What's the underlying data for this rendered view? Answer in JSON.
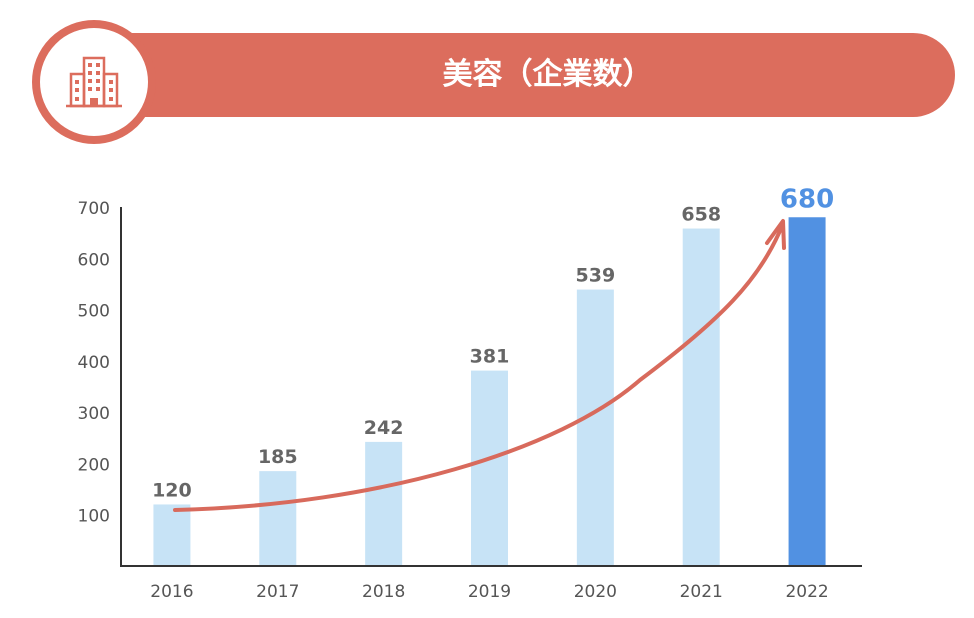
{
  "header": {
    "title": "美容（企業数）",
    "icon": "office-building-icon",
    "color": "#dc6d5d"
  },
  "chart_data": {
    "type": "bar",
    "title": "美容（企業数）",
    "xlabel": "",
    "ylabel": "",
    "categories": [
      "2016",
      "2017",
      "2018",
      "2019",
      "2020",
      "2021",
      "2022"
    ],
    "values": [
      120,
      185,
      242,
      381,
      539,
      658,
      680
    ],
    "value_labels": [
      "120",
      "185",
      "242",
      "381",
      "539",
      "658",
      "680"
    ],
    "yticks": [
      "100",
      "200",
      "300",
      "400",
      "500",
      "600",
      "700"
    ],
    "ylim": [
      0,
      700
    ],
    "grid": false,
    "bar_color": "#c7e3f6",
    "highlight_color": "#5191e2",
    "highlight_index": 6,
    "trend_arrow_color": "#d86a5c",
    "label_color": "#666666"
  }
}
